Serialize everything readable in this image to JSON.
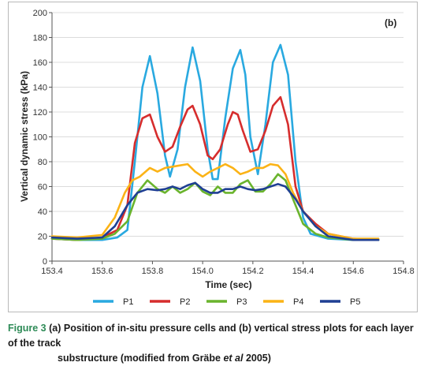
{
  "chart_data": {
    "type": "line",
    "panel_label": "(b)",
    "xlabel": "Time (sec)",
    "ylabel": "Vertical dynamic stress (kPa)",
    "xlim": [
      153.4,
      154.8
    ],
    "ylim": [
      0,
      200
    ],
    "x_ticks": [
      "153.4",
      "153.6",
      "153.8",
      "154.0",
      "154.2",
      "154.4",
      "154.6",
      "154.8"
    ],
    "y_ticks": [
      "0",
      "20",
      "40",
      "60",
      "80",
      "100",
      "120",
      "140",
      "160",
      "180",
      "200"
    ],
    "grid": "horizontal",
    "legend_position": "bottom",
    "series": [
      {
        "name": "P1",
        "color": "#29a9e0",
        "x": [
          153.4,
          153.5,
          153.6,
          153.66,
          153.7,
          153.73,
          153.76,
          153.79,
          153.82,
          153.85,
          153.87,
          153.9,
          153.93,
          153.96,
          153.99,
          154.02,
          154.04,
          154.06,
          154.09,
          154.12,
          154.15,
          154.17,
          154.19,
          154.22,
          154.25,
          154.28,
          154.31,
          154.34,
          154.37,
          154.4,
          154.43,
          154.5,
          154.6,
          154.7
        ],
        "y": [
          18,
          17,
          17,
          19,
          25,
          80,
          140,
          165,
          135,
          85,
          68,
          90,
          140,
          172,
          145,
          90,
          66,
          66,
          115,
          155,
          170,
          150,
          100,
          70,
          110,
          160,
          174,
          150,
          80,
          35,
          22,
          18,
          17,
          17
        ]
      },
      {
        "name": "P2",
        "color": "#d62d2d",
        "x": [
          153.4,
          153.5,
          153.6,
          153.66,
          153.7,
          153.73,
          153.76,
          153.79,
          153.82,
          153.85,
          153.88,
          153.91,
          153.94,
          153.96,
          153.99,
          154.02,
          154.04,
          154.07,
          154.1,
          154.12,
          154.14,
          154.16,
          154.19,
          154.22,
          154.25,
          154.28,
          154.31,
          154.34,
          154.37,
          154.4,
          154.45,
          154.5,
          154.6,
          154.7
        ],
        "y": [
          18,
          17,
          19,
          25,
          45,
          95,
          115,
          118,
          100,
          88,
          92,
          108,
          122,
          125,
          110,
          85,
          82,
          90,
          110,
          120,
          118,
          105,
          88,
          90,
          105,
          125,
          132,
          110,
          60,
          40,
          30,
          22,
          18,
          17
        ]
      },
      {
        "name": "P3",
        "color": "#6ab42d",
        "x": [
          153.4,
          153.5,
          153.6,
          153.65,
          153.7,
          153.74,
          153.78,
          153.82,
          153.85,
          153.88,
          153.91,
          153.94,
          153.97,
          154.0,
          154.03,
          154.06,
          154.09,
          154.12,
          154.15,
          154.18,
          154.21,
          154.24,
          154.27,
          154.3,
          154.33,
          154.36,
          154.4,
          154.45,
          154.5,
          154.6,
          154.7
        ],
        "y": [
          18,
          17,
          18,
          22,
          32,
          55,
          65,
          58,
          55,
          60,
          55,
          58,
          63,
          56,
          53,
          60,
          55,
          55,
          62,
          65,
          56,
          56,
          62,
          70,
          65,
          50,
          30,
          22,
          19,
          17,
          17
        ]
      },
      {
        "name": "P4",
        "color": "#fbb316",
        "x": [
          153.4,
          153.5,
          153.6,
          153.65,
          153.69,
          153.72,
          153.75,
          153.79,
          153.82,
          153.85,
          153.88,
          153.91,
          153.94,
          153.97,
          154.0,
          154.03,
          154.06,
          154.09,
          154.12,
          154.15,
          154.18,
          154.21,
          154.24,
          154.27,
          154.3,
          154.33,
          154.36,
          154.4,
          154.45,
          154.5,
          154.6,
          154.7
        ],
        "y": [
          20,
          19,
          21,
          35,
          55,
          65,
          68,
          75,
          72,
          75,
          76,
          77,
          78,
          72,
          68,
          72,
          75,
          78,
          75,
          70,
          72,
          75,
          75,
          78,
          77,
          70,
          55,
          40,
          28,
          22,
          18,
          18
        ]
      },
      {
        "name": "P5",
        "color": "#1f3f93",
        "x": [
          153.4,
          153.5,
          153.6,
          153.65,
          153.7,
          153.74,
          153.78,
          153.82,
          153.85,
          153.88,
          153.91,
          153.94,
          153.97,
          154.0,
          154.03,
          154.06,
          154.09,
          154.12,
          154.15,
          154.18,
          154.21,
          154.24,
          154.27,
          154.3,
          154.33,
          154.37,
          154.4,
          154.45,
          154.5,
          154.6,
          154.7
        ],
        "y": [
          19,
          18,
          19,
          28,
          45,
          55,
          58,
          57,
          58,
          60,
          58,
          61,
          63,
          58,
          55,
          55,
          58,
          58,
          60,
          58,
          57,
          58,
          60,
          62,
          60,
          50,
          40,
          28,
          20,
          17,
          17
        ]
      }
    ]
  },
  "caption": {
    "figure_label": "Figure 3",
    "text_line1": "(a) Position of in-situ pressure cells and (b) vertical stress plots for each layer of the track",
    "text_line2": "substructure (modified from Gräbe ",
    "et_al": "et al",
    "text_line2_end": " 2005)"
  }
}
